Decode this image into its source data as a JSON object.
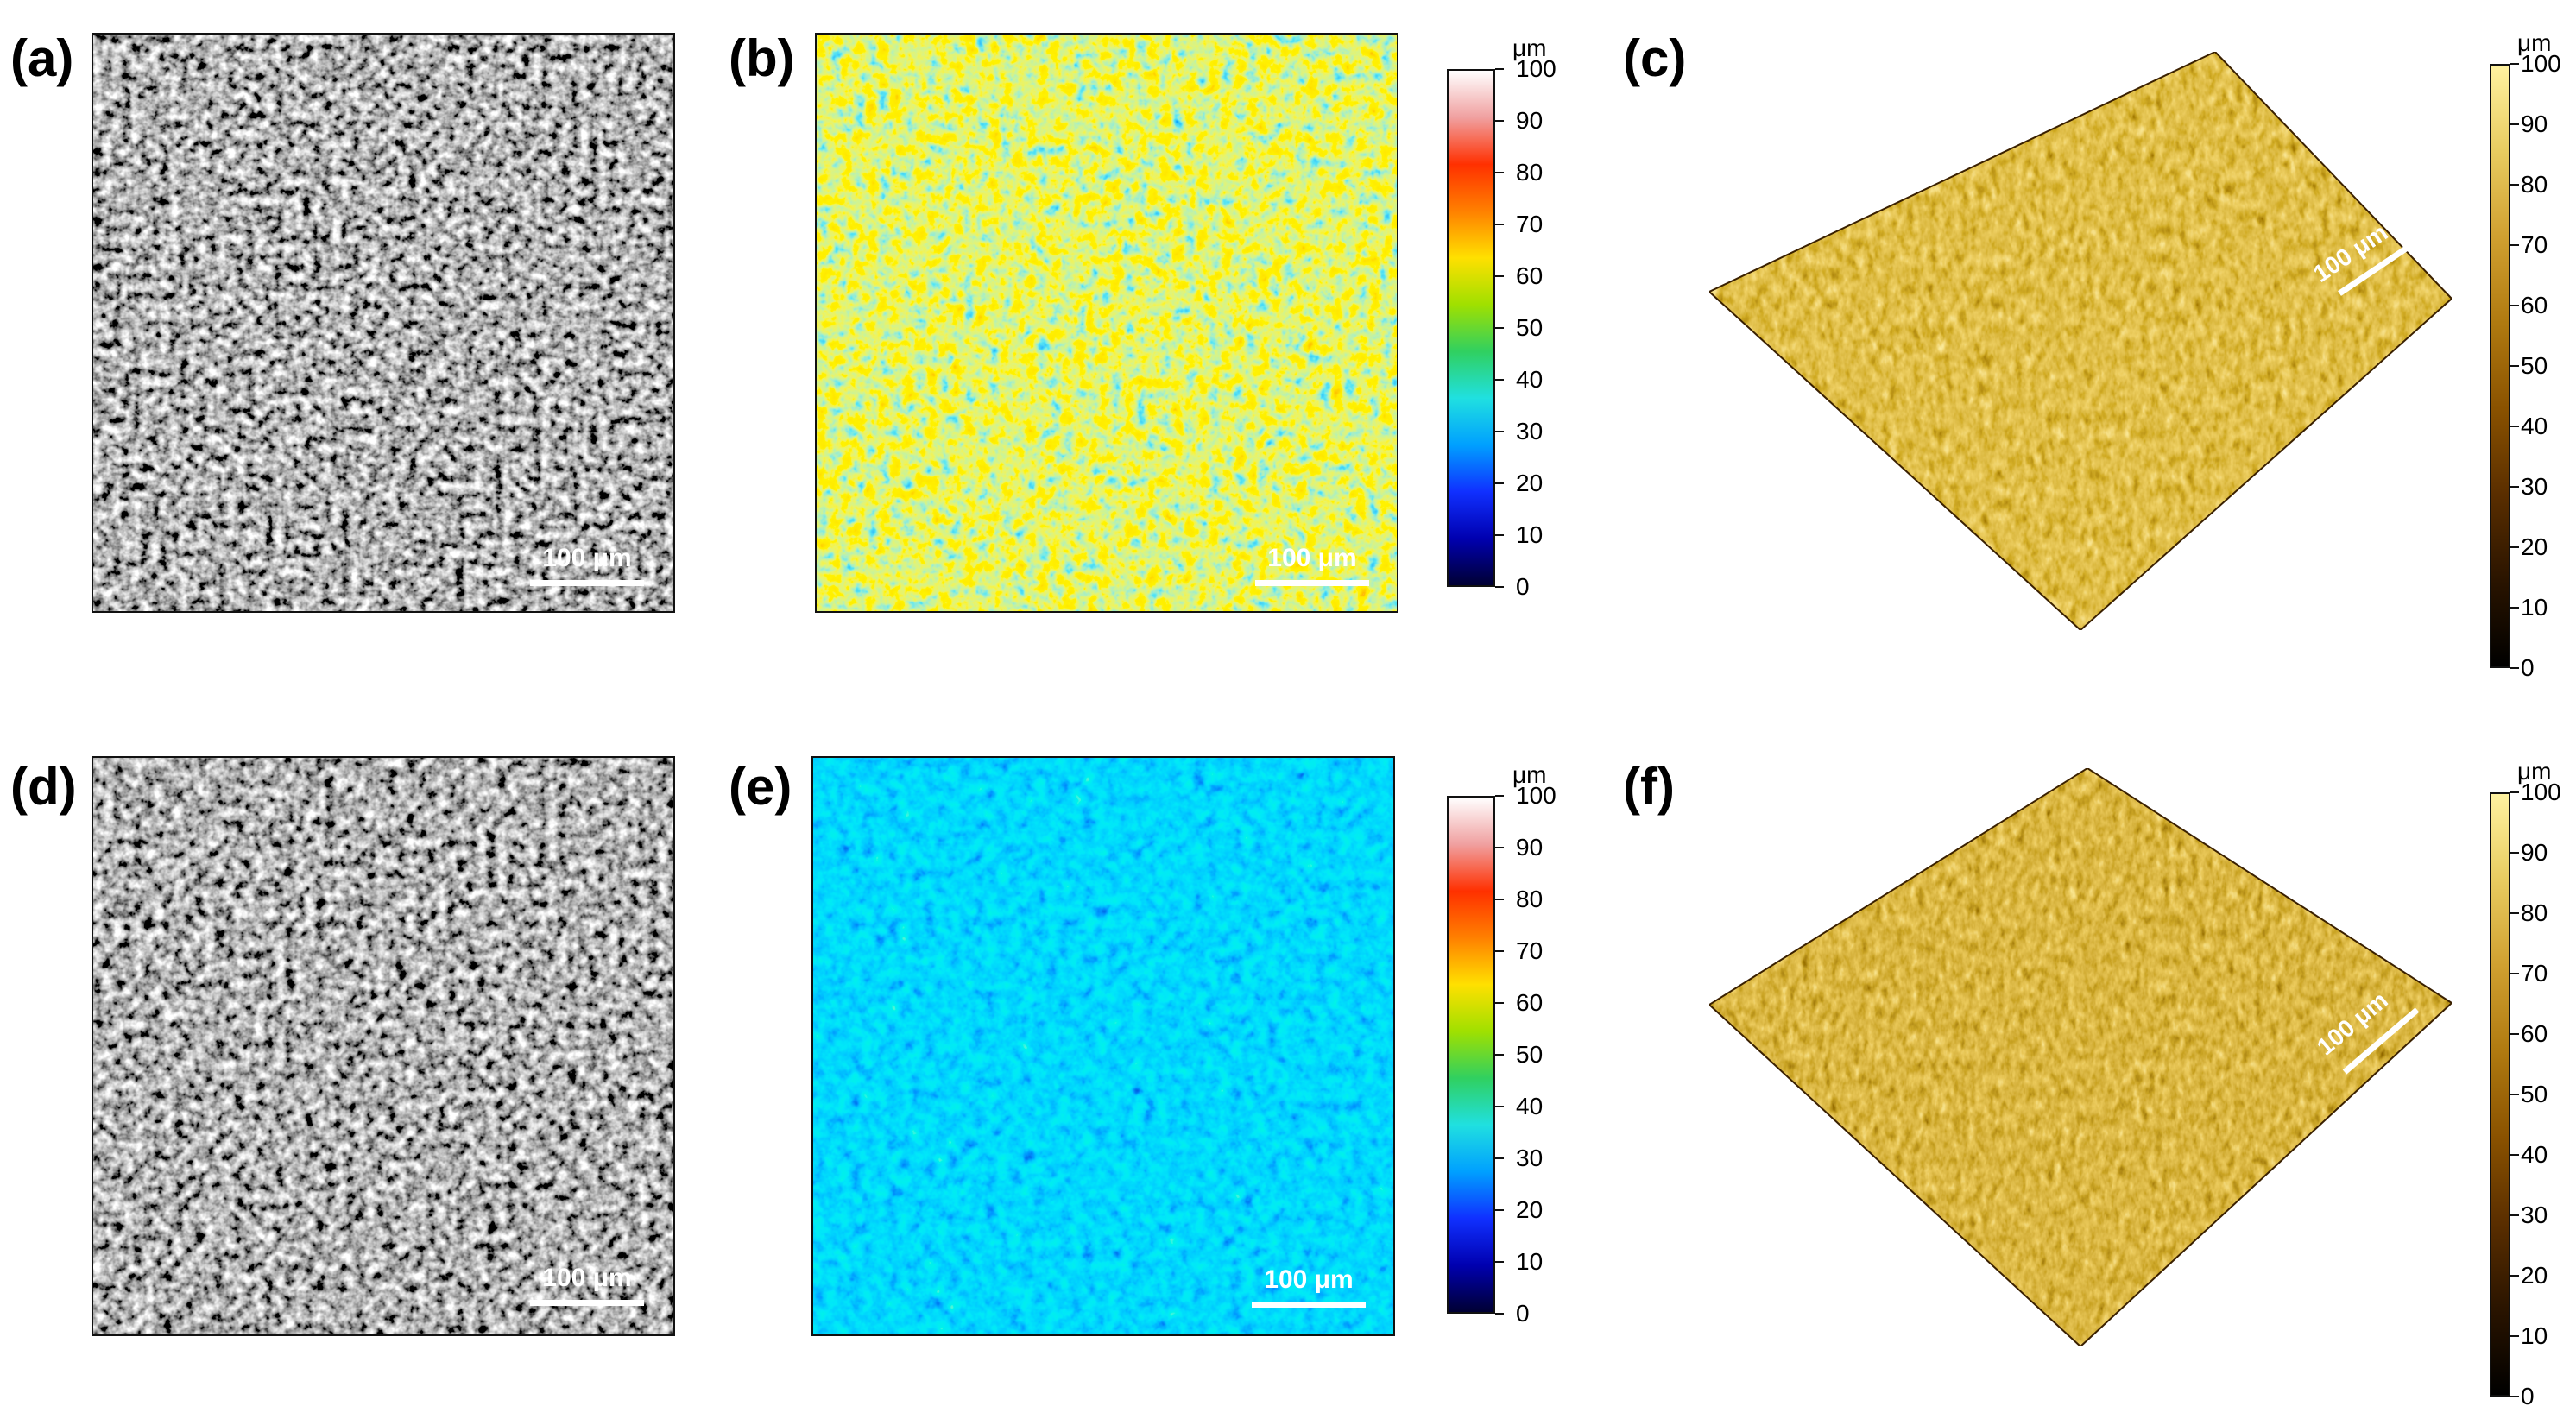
{
  "figure": {
    "panels": [
      {
        "id": "a",
        "label": "(a)",
        "kind": "sem",
        "scale_bar": "100 μm"
      },
      {
        "id": "b",
        "label": "(b)",
        "kind": "heightmap",
        "scale_bar": "100 μm"
      },
      {
        "id": "c",
        "label": "(c)",
        "kind": "3d",
        "scale_bar": "100 μm"
      },
      {
        "id": "d",
        "label": "(d)",
        "kind": "sem",
        "scale_bar": "100 μm"
      },
      {
        "id": "e",
        "label": "(e)",
        "kind": "heightmap",
        "scale_bar": "100 μm"
      },
      {
        "id": "f",
        "label": "(f)",
        "kind": "3d",
        "scale_bar": "100 μm"
      }
    ],
    "colorbars": [
      {
        "id": "b",
        "unit": "μm",
        "ticks": [
          "100",
          "90",
          "80",
          "70",
          "60",
          "50",
          "40",
          "30",
          "20",
          "10",
          "0"
        ],
        "map": "jet",
        "stops": [
          "#000033",
          "#0000b0",
          "#1030ff",
          "#00a0ff",
          "#20e0e0",
          "#30d060",
          "#a0e000",
          "#ffe000",
          "#ff8000",
          "#ff3000",
          "#f0a0a0",
          "#ffffff"
        ]
      },
      {
        "id": "e",
        "unit": "μm",
        "ticks": [
          "100",
          "90",
          "80",
          "70",
          "60",
          "50",
          "40",
          "30",
          "20",
          "10",
          "0"
        ],
        "map": "jet",
        "stops": [
          "#000033",
          "#0000b0",
          "#1030ff",
          "#00a0ff",
          "#20e0e0",
          "#30d060",
          "#a0e000",
          "#ffe000",
          "#ff8000",
          "#ff3000",
          "#f0a0a0",
          "#ffffff"
        ]
      },
      {
        "id": "c",
        "unit": "μm",
        "ticks": [
          "100",
          "90",
          "80",
          "70",
          "60",
          "50",
          "40",
          "30",
          "20",
          "10",
          "0"
        ],
        "map": "gold",
        "stops": [
          "#000000",
          "#2a1400",
          "#5a2e00",
          "#8a5200",
          "#b07a10",
          "#d0a030",
          "#e8cc60",
          "#fff2a0"
        ]
      },
      {
        "id": "f",
        "unit": "μm",
        "ticks": [
          "100",
          "90",
          "80",
          "70",
          "60",
          "50",
          "40",
          "30",
          "20",
          "10",
          "0"
        ],
        "map": "gold",
        "stops": [
          "#000000",
          "#2a1400",
          "#5a2e00",
          "#8a5200",
          "#b07a10",
          "#d0a030",
          "#e8cc60",
          "#fff2a0"
        ]
      }
    ]
  }
}
